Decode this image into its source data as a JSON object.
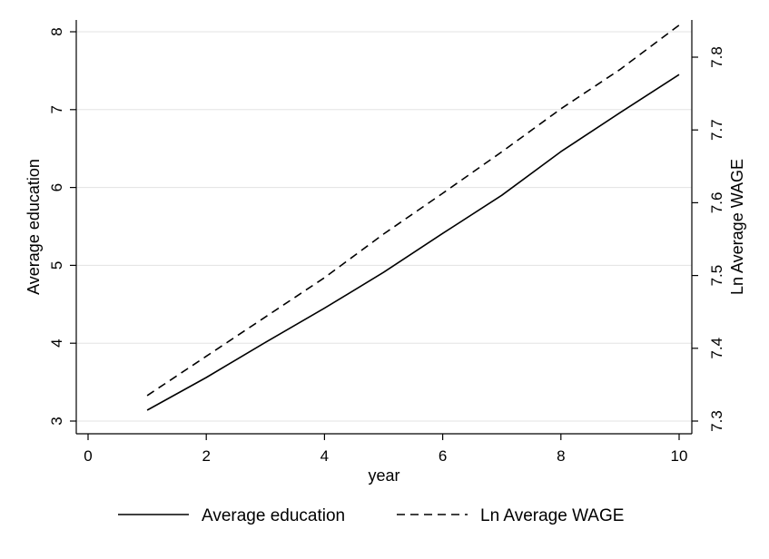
{
  "chart_data": {
    "type": "line",
    "x_axis": {
      "label": "year",
      "range": [
        0,
        10
      ],
      "ticks": [
        0,
        2,
        4,
        6,
        8,
        10
      ]
    },
    "y_left": {
      "label": "Average education",
      "range": [
        3,
        8
      ],
      "ticks": [
        3,
        4,
        5,
        6,
        7,
        8
      ]
    },
    "y_right": {
      "label": "Ln Average WAGE",
      "range": [
        7.3,
        7.8
      ],
      "ticks": [
        7.3,
        7.4,
        7.5,
        7.6,
        7.7,
        7.8
      ]
    },
    "grid": true,
    "legend_position": "bottom",
    "series": [
      {
        "name": "Average education",
        "axis": "left",
        "style": "solid",
        "color": "#000000",
        "x": [
          1,
          2,
          3,
          4,
          5,
          6,
          7,
          8,
          9,
          10
        ],
        "values": [
          3.14,
          3.56,
          4.01,
          4.45,
          4.91,
          5.41,
          5.9,
          6.46,
          6.96,
          7.45
        ]
      },
      {
        "name": "Ln Average WAGE",
        "axis": "right",
        "style": "dashed",
        "color": "#000000",
        "x": [
          1,
          2,
          3,
          4,
          5,
          6,
          7,
          8,
          9,
          10
        ],
        "values": [
          7.335,
          7.389,
          7.443,
          7.497,
          7.557,
          7.613,
          7.67,
          7.729,
          7.783,
          7.844
        ]
      }
    ]
  }
}
